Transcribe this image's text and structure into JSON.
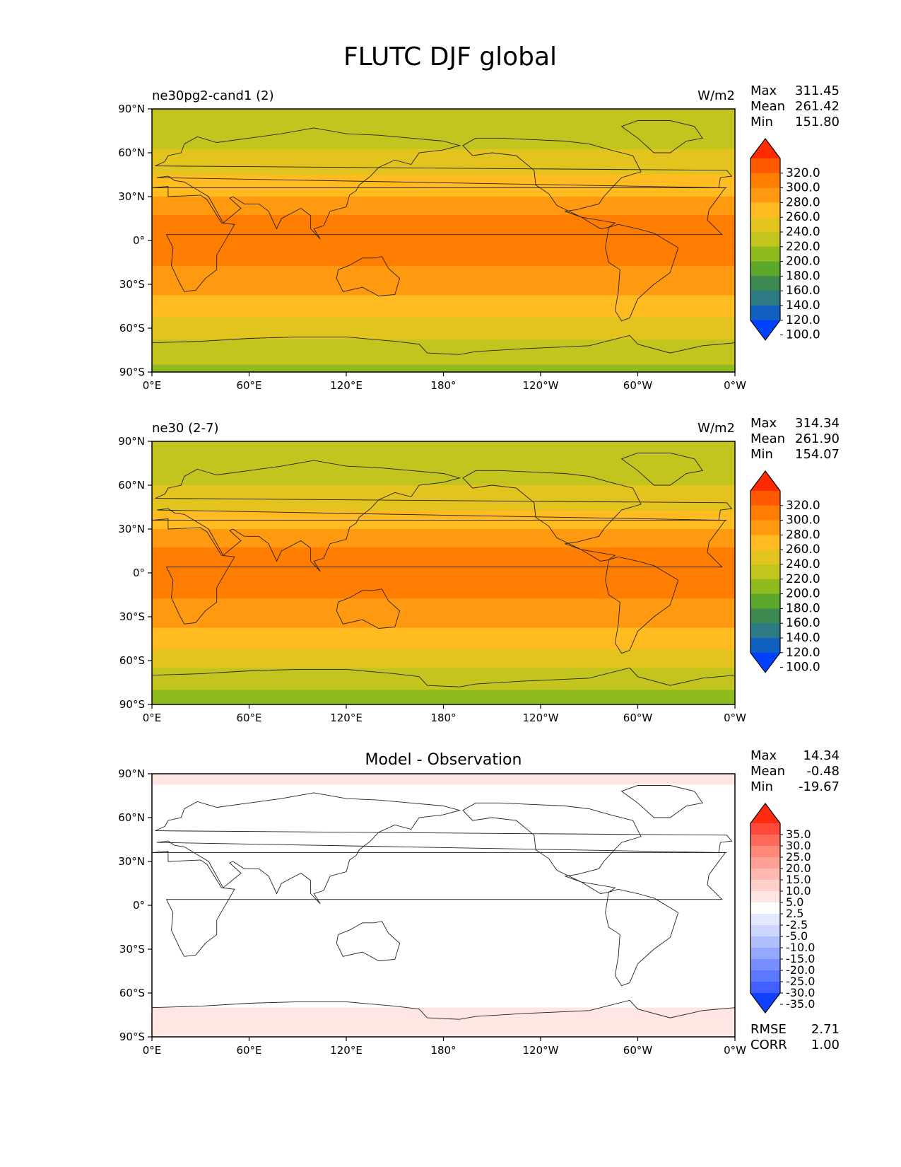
{
  "figure_title": "FLUTC DJF global",
  "chart_data": [
    {
      "type": "heatmap",
      "name": "panel-test",
      "title_left": "ne30pg2-cand1 (2)",
      "title_right": "W/m2",
      "title_center": "",
      "xticks": [
        "0°E",
        "60°E",
        "120°E",
        "180°",
        "120°W",
        "60°W",
        "0°W"
      ],
      "yticks": [
        "90°N",
        "60°N",
        "30°N",
        "0°",
        "30°S",
        "60°S",
        "90°S"
      ],
      "stats": [
        {
          "label": "Max",
          "value": "311.45"
        },
        {
          "label": "Mean",
          "value": "261.42"
        },
        {
          "label": "Min",
          "value": "151.80"
        }
      ],
      "colorbar": {
        "labels": [
          "320.0",
          "300.0",
          "280.0",
          "260.0",
          "240.0",
          "220.0",
          "200.0",
          "180.0",
          "160.0",
          "140.0",
          "120.0",
          "100.0"
        ],
        "colors": [
          "#ff2a00",
          "#ff5a00",
          "#ff7d00",
          "#ff9a10",
          "#ffbb20",
          "#e3c41e",
          "#c3c41e",
          "#8fbb1e",
          "#5ba82b",
          "#3d8a50",
          "#2d7a85",
          "#1060c0",
          "#0040ff"
        ]
      },
      "zonal_bands": [
        {
          "lat": 90,
          "value": 205
        },
        {
          "lat": 75,
          "value": 208
        },
        {
          "lat": 60,
          "value": 222
        },
        {
          "lat": 45,
          "value": 240
        },
        {
          "lat": 30,
          "value": 258
        },
        {
          "lat": 15,
          "value": 282
        },
        {
          "lat": 0,
          "value": 283
        },
        {
          "lat": -15,
          "value": 282
        },
        {
          "lat": -30,
          "value": 272
        },
        {
          "lat": -45,
          "value": 250
        },
        {
          "lat": -60,
          "value": 232
        },
        {
          "lat": -75,
          "value": 210
        },
        {
          "lat": -90,
          "value": 195
        }
      ],
      "footer_stats": []
    },
    {
      "type": "heatmap",
      "name": "panel-reference",
      "title_left": "ne30 (2-7)",
      "title_right": "W/m2",
      "title_center": "",
      "xticks": [
        "0°E",
        "60°E",
        "120°E",
        "180°",
        "120°W",
        "60°W",
        "0°W"
      ],
      "yticks": [
        "90°N",
        "60°N",
        "30°N",
        "0°",
        "30°S",
        "60°S",
        "90°S"
      ],
      "stats": [
        {
          "label": "Max",
          "value": "314.34"
        },
        {
          "label": "Mean",
          "value": "261.90"
        },
        {
          "label": "Min",
          "value": "154.07"
        }
      ],
      "colorbar": {
        "labels": [
          "320.0",
          "300.0",
          "280.0",
          "260.0",
          "240.0",
          "220.0",
          "200.0",
          "180.0",
          "160.0",
          "140.0",
          "120.0",
          "100.0"
        ],
        "colors": [
          "#ff2a00",
          "#ff5a00",
          "#ff7d00",
          "#ff9a10",
          "#ffbb20",
          "#e3c41e",
          "#c3c41e",
          "#8fbb1e",
          "#5ba82b",
          "#3d8a50",
          "#2d7a85",
          "#1060c0",
          "#0040ff"
        ]
      },
      "zonal_bands": [
        {
          "lat": 90,
          "value": 200
        },
        {
          "lat": 75,
          "value": 206
        },
        {
          "lat": 60,
          "value": 220
        },
        {
          "lat": 45,
          "value": 238
        },
        {
          "lat": 30,
          "value": 258
        },
        {
          "lat": 15,
          "value": 283
        },
        {
          "lat": 0,
          "value": 284
        },
        {
          "lat": -15,
          "value": 283
        },
        {
          "lat": -30,
          "value": 270
        },
        {
          "lat": -45,
          "value": 250
        },
        {
          "lat": -60,
          "value": 228
        },
        {
          "lat": -75,
          "value": 205
        },
        {
          "lat": -90,
          "value": 185
        }
      ],
      "footer_stats": []
    },
    {
      "type": "heatmap",
      "name": "panel-difference",
      "title_left": "",
      "title_right": "",
      "title_center": "Model - Observation",
      "xticks": [
        "0°E",
        "60°E",
        "120°E",
        "180°",
        "120°W",
        "60°W",
        "0°W"
      ],
      "yticks": [
        "90°N",
        "60°N",
        "30°N",
        "0°",
        "30°S",
        "60°S",
        "90°S"
      ],
      "stats": [
        {
          "label": "Max",
          "value": "14.34"
        },
        {
          "label": "Mean",
          "value": "-0.48"
        },
        {
          "label": "Min",
          "value": "-19.67"
        }
      ],
      "colorbar": {
        "labels": [
          "35.0",
          "30.0",
          "25.0",
          "20.0",
          "15.0",
          "10.0",
          "5.0",
          "2.5",
          "-2.5",
          "-5.0",
          "-10.0",
          "-15.0",
          "-20.0",
          "-25.0",
          "-30.0",
          "-35.0"
        ],
        "colors": [
          "#ff2a10",
          "#ff4a3a",
          "#ff6a5a",
          "#ff8878",
          "#ffa096",
          "#ffb8b0",
          "#ffd0ca",
          "#ffe6e2",
          "#ffffff",
          "#e2e8ff",
          "#ccd6ff",
          "#b0c0ff",
          "#94a8ff",
          "#7890ff",
          "#5c78ff",
          "#4060ff",
          "#1040ff"
        ]
      },
      "zonal_bands": [
        {
          "lat": 90,
          "value": 3
        },
        {
          "lat": 75,
          "value": 2
        },
        {
          "lat": 60,
          "value": 0
        },
        {
          "lat": 45,
          "value": 0
        },
        {
          "lat": 30,
          "value": -1
        },
        {
          "lat": 15,
          "value": -2
        },
        {
          "lat": 0,
          "value": 0
        },
        {
          "lat": -15,
          "value": -1
        },
        {
          "lat": -30,
          "value": 0
        },
        {
          "lat": -45,
          "value": -2
        },
        {
          "lat": -60,
          "value": 0
        },
        {
          "lat": -75,
          "value": 4
        },
        {
          "lat": -90,
          "value": 5
        }
      ],
      "footer_stats": [
        {
          "label": "RMSE",
          "value": "2.71"
        },
        {
          "label": "CORR",
          "value": "1.00"
        }
      ]
    }
  ]
}
